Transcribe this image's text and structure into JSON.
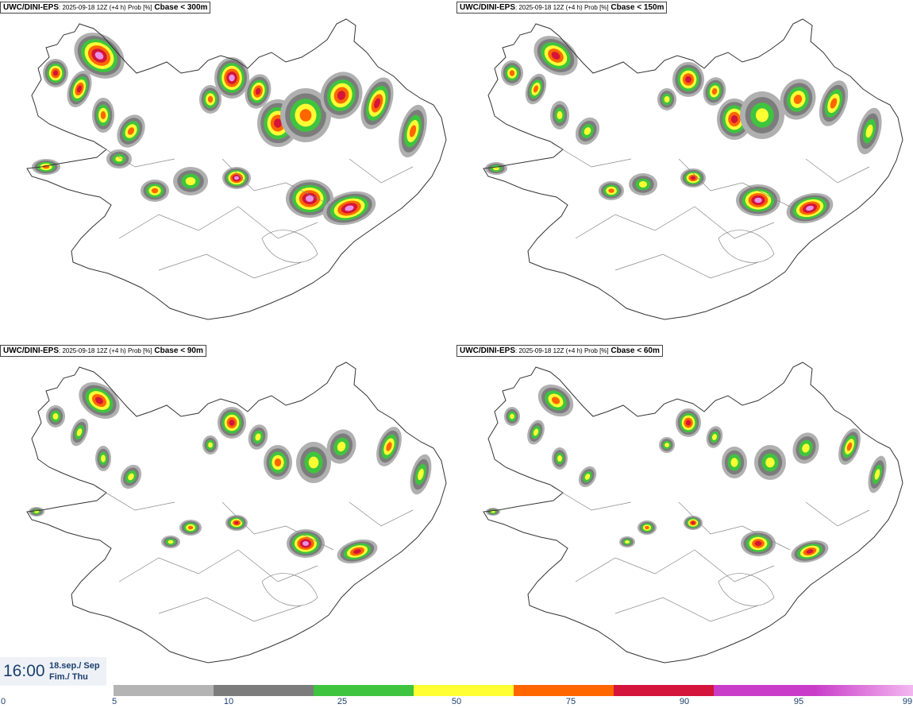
{
  "panels": [
    {
      "model": "UWC/DINI-EPS",
      "run": ": 2025-09-18 12Z (+4 h) Prob [%]",
      "field": "Cbase < 300m"
    },
    {
      "model": "UWC/DINI-EPS",
      "run": ": 2025-09-18 12Z (+4 h) Prob [%]",
      "field": "Cbase < 150m"
    },
    {
      "model": "UWC/DINI-EPS",
      "run": ": 2025-09-18 12Z (+4 h) Prob [%]",
      "field": "Cbase < 90m"
    },
    {
      "model": "UWC/DINI-EPS",
      "run": ": 2025-09-18 12Z (+4 h) Prob [%]",
      "field": "Cbase < 60m"
    }
  ],
  "valid_time": {
    "time": "16:00",
    "date_line1": "18.sep./ Sep",
    "date_line2": "Fim./ Thu"
  },
  "legend": {
    "ticks": [
      "0",
      "5",
      "10",
      "25",
      "50",
      "75",
      "90",
      "95",
      "99"
    ],
    "colors": [
      "#b4b4b4",
      "#7c7c7c",
      "#3ec43e",
      "#ffff33",
      "#ff6600",
      "#d4143a",
      "#c83cc8",
      "#f4b8f0"
    ]
  },
  "blob_colors": [
    "#b0b0b0",
    "#7c7c7c",
    "#3ec43e",
    "#ffff33",
    "#ff6600",
    "#d4143a",
    "#e890e8"
  ]
}
